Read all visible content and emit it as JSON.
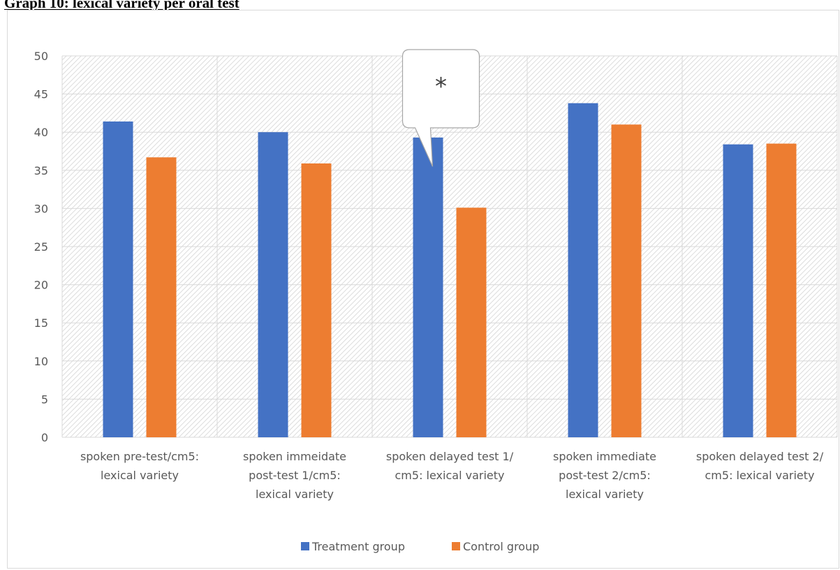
{
  "page": {
    "heading": "Graph 10: lexical variety per oral test"
  },
  "chart_data": {
    "type": "bar",
    "title": "",
    "xlabel": "",
    "ylabel": "",
    "ylim": [
      0,
      50
    ],
    "yticks": [
      0,
      5,
      10,
      15,
      20,
      25,
      30,
      35,
      40,
      45,
      50
    ],
    "grid": true,
    "legend_position": "bottom",
    "categories": [
      [
        "spoken pre-test/cm5:",
        "lexical variety"
      ],
      [
        "spoken immeidate",
        "post-test 1/cm5:",
        "lexical variety"
      ],
      [
        "spoken delayed test 1/",
        "cm5: lexical variety"
      ],
      [
        "spoken immediate",
        "post-test 2/cm5:",
        "lexical variety"
      ],
      [
        "spoken delayed test 2/",
        "cm5: lexical variety"
      ]
    ],
    "series": [
      {
        "name": "Treatment group",
        "color": "#4472c4",
        "values": [
          41.4,
          40.0,
          39.3,
          43.8,
          38.4
        ]
      },
      {
        "name": "Control group",
        "color": "#ed7d31",
        "values": [
          36.7,
          35.9,
          30.1,
          41.0,
          38.5
        ]
      }
    ],
    "annotations": [
      {
        "text": "*",
        "category_index": 2,
        "shape": "callout"
      }
    ]
  }
}
